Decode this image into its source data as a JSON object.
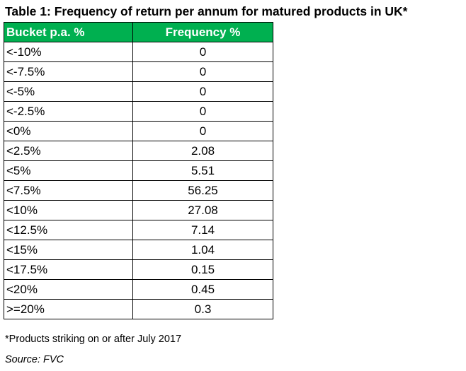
{
  "title": "Table 1: Frequency of return per annum for matured products in UK*",
  "table": {
    "headers": [
      "Bucket p.a. %",
      "Frequency %"
    ],
    "header_color": "#00b050",
    "rows": [
      {
        "bucket": "<-10%",
        "frequency": "0"
      },
      {
        "bucket": "<-7.5%",
        "frequency": "0"
      },
      {
        "bucket": "<-5%",
        "frequency": "0"
      },
      {
        "bucket": "<-2.5%",
        "frequency": "0"
      },
      {
        "bucket": "<0%",
        "frequency": "0"
      },
      {
        "bucket": "<2.5%",
        "frequency": "2.08"
      },
      {
        "bucket": "<5%",
        "frequency": "5.51"
      },
      {
        "bucket": "<7.5%",
        "frequency": "56.25"
      },
      {
        "bucket": "<10%",
        "frequency": "27.08"
      },
      {
        "bucket": "<12.5%",
        "frequency": "7.14"
      },
      {
        "bucket": "<15%",
        "frequency": "1.04"
      },
      {
        "bucket": "<17.5%",
        "frequency": "0.15"
      },
      {
        "bucket": "<20%",
        "frequency": "0.45"
      },
      {
        "bucket": ">=20%",
        "frequency": "0.3"
      }
    ]
  },
  "footnote": "*Products striking on or after July 2017",
  "source": "Source: FVC"
}
